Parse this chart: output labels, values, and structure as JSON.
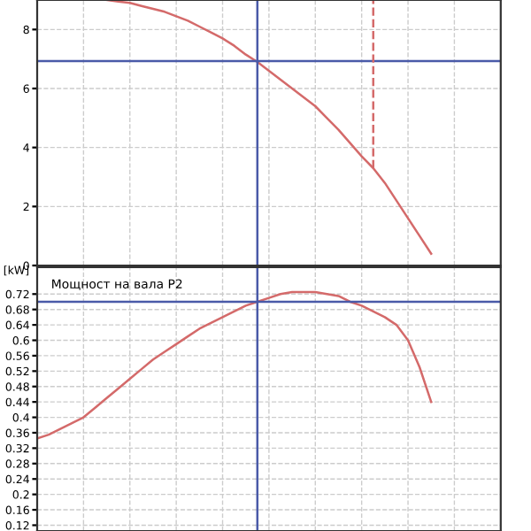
{
  "chart_data": [
    {
      "type": "line",
      "categories": [
        null,
        null,
        null,
        null,
        null,
        null,
        null,
        null,
        null,
        null,
        null,
        null,
        null,
        null,
        null,
        null,
        null,
        null,
        null,
        null,
        null,
        null,
        null,
        null,
        null,
        null,
        null,
        null,
        null,
        null,
        null,
        null,
        null,
        null,
        null,
        null,
        null,
        null,
        null,
        null,
        null
      ],
      "series": [
        {
          "color": "#d46a6a",
          "values": [
            null,
            null,
            null,
            null,
            null,
            null,
            9.0,
            8.95,
            8.9,
            8.8,
            8.7,
            8.6,
            8.45,
            8.3,
            8.1,
            7.9,
            7.7,
            7.45,
            7.15,
            6.9,
            6.6,
            6.3,
            6.0,
            5.7,
            5.4,
            5.0,
            4.6,
            4.15,
            3.7,
            3.3,
            2.8,
            2.2,
            1.6,
            1.0,
            0.4,
            null,
            null,
            null,
            null,
            null,
            null
          ]
        }
      ],
      "ylim": [
        0,
        9
      ],
      "yticks": [
        0,
        2,
        4,
        6,
        8
      ],
      "grid": true,
      "tick_labels": "y",
      "ref_lines": [
        {
          "axis": "y",
          "value": 6.93,
          "color": "#4a5aa8"
        }
      ]
    },
    {
      "type": "line",
      "categories": [
        null,
        null,
        null,
        null,
        null,
        null,
        null,
        null,
        null,
        null,
        null,
        null,
        null,
        null,
        null,
        null,
        null,
        null,
        null,
        null,
        null,
        null,
        null,
        null,
        null,
        null,
        null,
        null,
        null,
        null,
        null,
        null,
        null,
        null,
        null,
        null,
        null,
        null,
        null,
        null,
        null
      ],
      "ylabel": "[kW]",
      "annotations": [
        "Мощност на вала P2"
      ],
      "series": [
        {
          "color": "#d46a6a",
          "values": [
            0.345,
            0.355,
            0.37,
            0.385,
            0.4,
            0.425,
            0.45,
            0.475,
            0.5,
            0.525,
            0.55,
            0.57,
            0.59,
            0.61,
            0.63,
            0.645,
            0.66,
            0.675,
            0.69,
            0.7,
            0.71,
            0.72,
            0.725,
            0.725,
            0.725,
            0.72,
            0.715,
            0.7,
            0.69,
            0.675,
            0.66,
            0.64,
            0.6,
            0.53,
            0.44,
            null,
            null,
            null,
            null,
            null,
            null
          ]
        }
      ],
      "ylim": [
        0.105,
        0.79
      ],
      "yticks": [
        0.12,
        0.16,
        0.2,
        0.24,
        0.28,
        0.32,
        0.36,
        0.4,
        0.44,
        0.48,
        0.52,
        0.56,
        0.6,
        0.64,
        0.68,
        0.72
      ],
      "grid": true,
      "tick_labels": "y",
      "ref_lines": [
        {
          "axis": "y",
          "value": 0.7,
          "color": "#4a5aa8"
        }
      ]
    }
  ]
}
